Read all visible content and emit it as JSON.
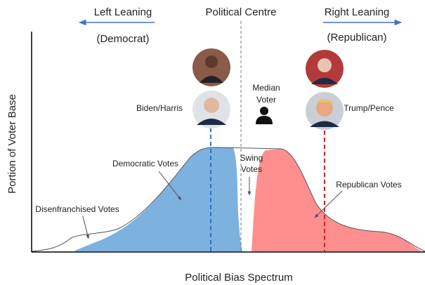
{
  "header": {
    "left": "Left Leaning",
    "centre": "Political Centre",
    "right": "Right Leaning",
    "left_party": "(Democrat)",
    "right_party": "(Republican)"
  },
  "candidates": {
    "left": "Biden/Harris",
    "right": "Trump/Pence"
  },
  "median_voter": [
    "Median",
    "Voter"
  ],
  "regions": {
    "swing": [
      "Swing",
      "Votes"
    ],
    "democratic": "Democratic Votes",
    "republican": "Republican Votes",
    "disenfranchised": "Disenfranchised Votes"
  },
  "axes": {
    "y": "Portion of Voter Base",
    "x": "Political Bias Spectrum"
  }
}
